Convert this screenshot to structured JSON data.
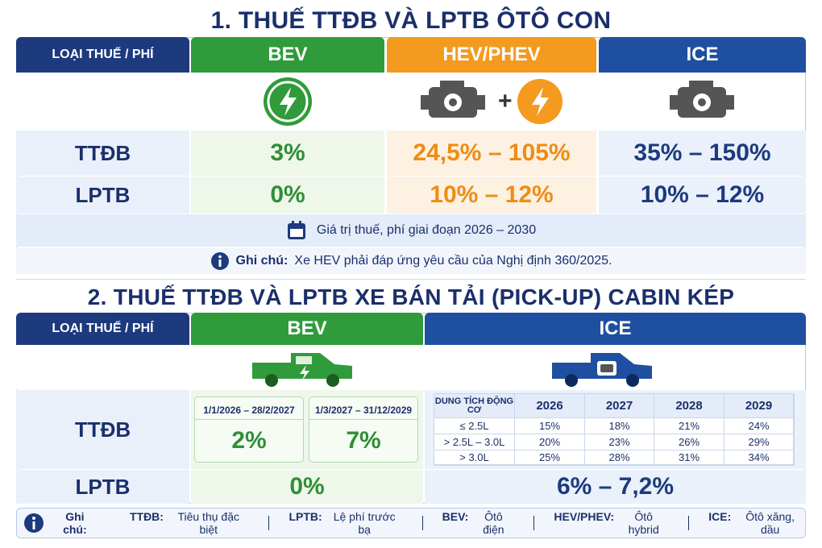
{
  "section1": {
    "title": "1. THUẾ TTĐB VÀ LPTB ÔTÔ CON",
    "header": [
      "LOẠI THUẾ / PHÍ",
      "BEV",
      "HEV/PHEV",
      "ICE"
    ],
    "icon_plus": "+",
    "rows": [
      [
        "TTĐB",
        "3%",
        "24,5% – 105%",
        "35% – 150%"
      ],
      [
        "LPTB",
        "0%",
        "10% – 12%",
        "10% – 12%"
      ]
    ],
    "period": "Giá trị thuế, phí giai đoạn 2026 – 2030",
    "note_label": "Ghi chú:",
    "note": "Xe HEV phải đáp ứng yêu cầu của Nghị định 360/2025."
  },
  "section2": {
    "title": "2. THUẾ TTĐB VÀ LPTB XE BÁN TẢI (PICK-UP) CABIN KÉP",
    "header": [
      "LOẠI THUẾ / PHÍ",
      "BEV",
      "ICE"
    ],
    "row_labels": [
      "TTĐB",
      "LPTB"
    ],
    "bev_periods": [
      {
        "period": "1/1/2026 – 28/2/2027",
        "value": "2%"
      },
      {
        "period": "1/3/2027 – 31/12/2029",
        "value": "7%"
      }
    ],
    "ice_table": {
      "header": [
        "DUNG TÍCH ĐỘNG CƠ",
        "2026",
        "2027",
        "2028",
        "2029"
      ],
      "rows": [
        [
          "≤ 2.5L",
          "15%",
          "18%",
          "21%",
          "24%"
        ],
        [
          "> 2.5L – 3.0L",
          "20%",
          "23%",
          "26%",
          "29%"
        ],
        [
          "> 3.0L",
          "25%",
          "28%",
          "31%",
          "34%"
        ]
      ]
    },
    "lptb": [
      "0%",
      "6% – 7,2%"
    ]
  },
  "footer": {
    "label": "Ghi chú:",
    "items": [
      {
        "key": "TTĐB:",
        "text": "Tiêu thụ đặc biệt"
      },
      {
        "key": "LPTB:",
        "text": "Lệ phí trước bạ"
      },
      {
        "key": "BEV:",
        "text": "Ôtô điện"
      },
      {
        "key": "HEV/PHEV:",
        "text": "Ôtô hybrid"
      },
      {
        "key": "ICE:",
        "text": "Ôtô xăng, dầu"
      }
    ]
  }
}
